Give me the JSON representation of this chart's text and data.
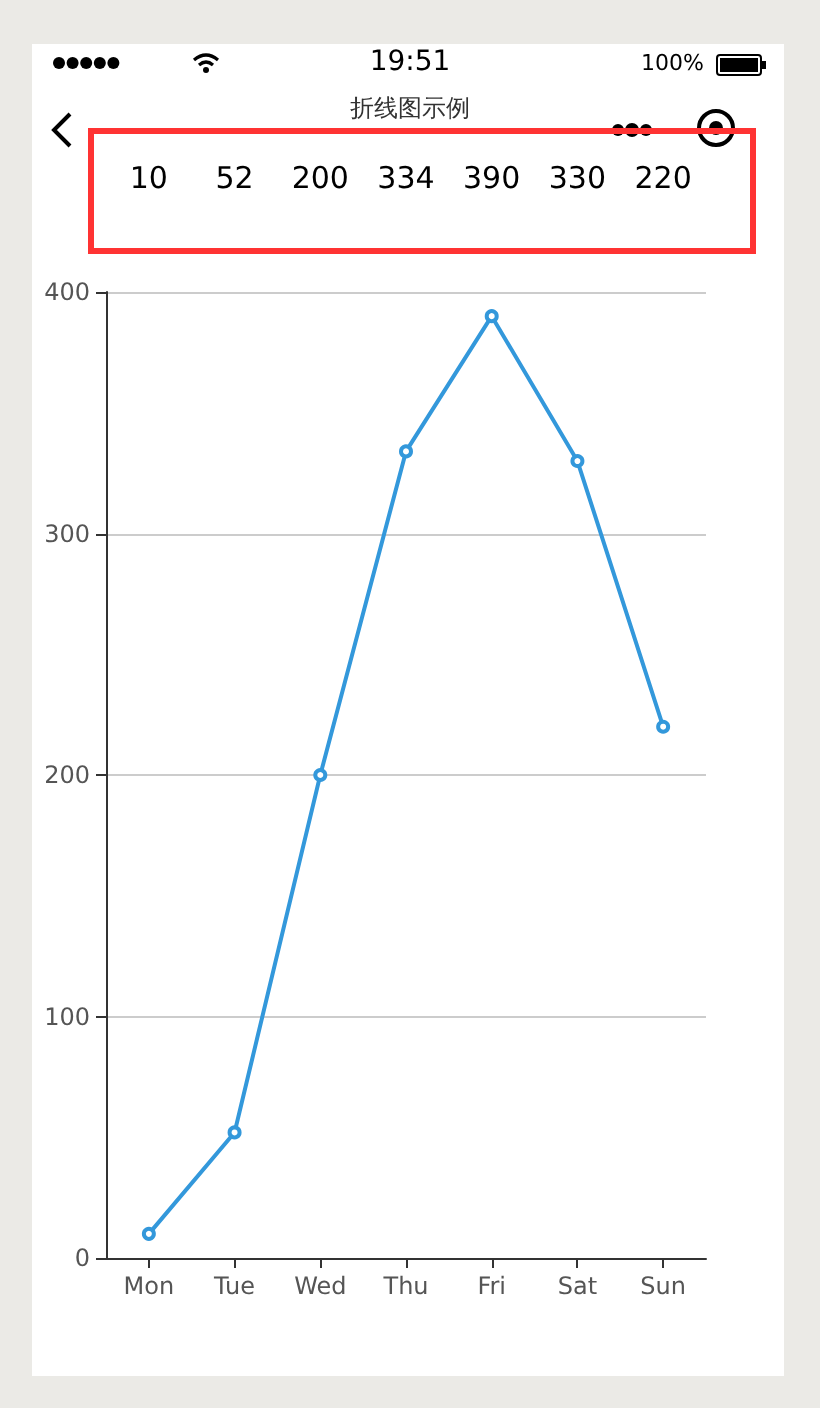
{
  "chart_data": {
    "type": "line",
    "title": "折线图示例",
    "categories": [
      "Mon",
      "Tue",
      "Wed",
      "Thu",
      "Fri",
      "Sat",
      "Sun"
    ],
    "series": [
      {
        "color": "#3398db",
        "values": [
          10,
          52,
          200,
          334,
          390,
          330,
          220
        ]
      }
    ],
    "ylim": [
      0,
      400
    ],
    "yticks": [
      0,
      100,
      200,
      300,
      400
    ],
    "grid": "y",
    "marker": "circle",
    "line_style": "solid",
    "data_labels": true,
    "annotations": [
      "19:51",
      "100%"
    ]
  }
}
